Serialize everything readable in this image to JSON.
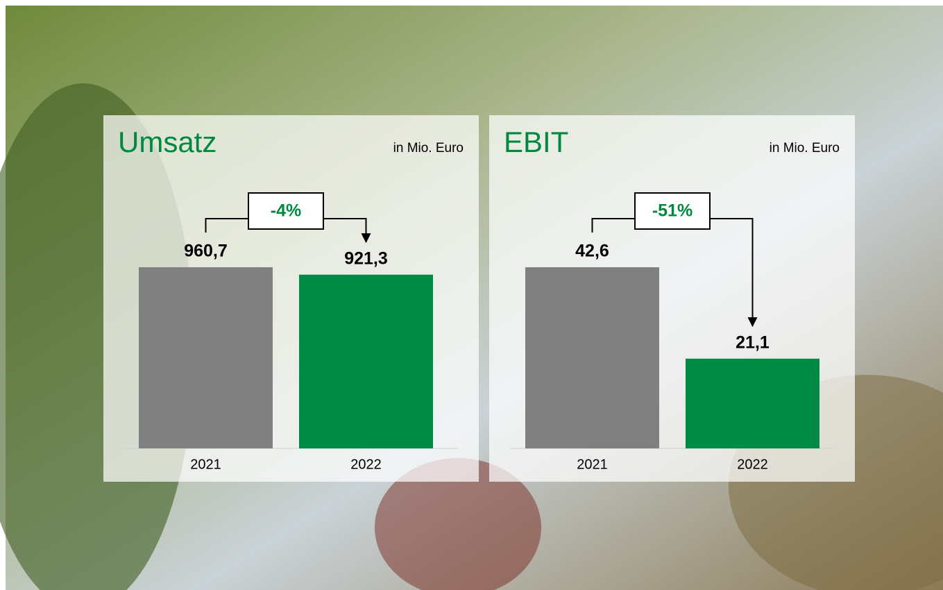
{
  "chart_data": [
    {
      "type": "bar",
      "title": "Umsatz",
      "subtitle": "in Mio. Euro",
      "categories": [
        "2021",
        "2022"
      ],
      "values": [
        960.7,
        921.3
      ],
      "value_labels": [
        "960,7",
        "921,3"
      ],
      "colors": [
        "#808080",
        "#008a45"
      ],
      "change": "-4%"
    },
    {
      "type": "bar",
      "title": "EBIT",
      "subtitle": "in Mio. Euro",
      "categories": [
        "2021",
        "2022"
      ],
      "values": [
        42.6,
        21.1
      ],
      "value_labels": [
        "42,6",
        "21,1"
      ],
      "colors": [
        "#808080",
        "#008a45"
      ],
      "change": "-51%"
    }
  ]
}
